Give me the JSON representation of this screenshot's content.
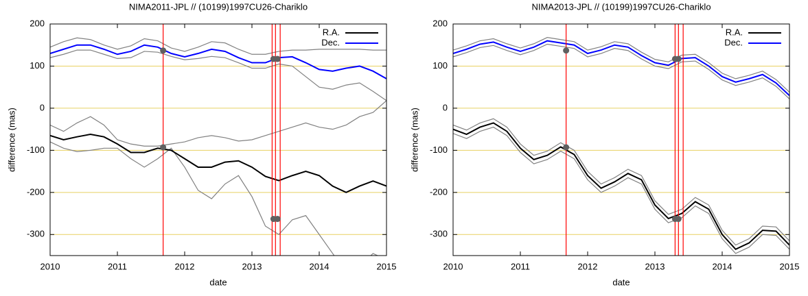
{
  "chart_data": [
    {
      "type": "line",
      "title": "NIMA2011-JPL // (10199)1997CU26-Chariklo",
      "xlabel": "date",
      "ylabel": "difference (mas)",
      "x": [
        2010.0,
        2010.2,
        2010.4,
        2010.6,
        2010.8,
        2011.0,
        2011.2,
        2011.4,
        2011.6,
        2011.8,
        2012.0,
        2012.2,
        2012.4,
        2012.6,
        2012.8,
        2013.0,
        2013.2,
        2013.4,
        2013.6,
        2013.8,
        2014.0,
        2014.2,
        2014.4,
        2014.6,
        2014.8,
        2015.0
      ],
      "series": [
        {
          "color": "#808080",
          "values": [
            145,
            158,
            167,
            163,
            150,
            140,
            148,
            165,
            160,
            143,
            135,
            145,
            158,
            155,
            140,
            128,
            128,
            135,
            138,
            138,
            140,
            140,
            140,
            140,
            138,
            138
          ]
        },
        {
          "color": "#808080",
          "values": [
            120,
            128,
            138,
            138,
            128,
            118,
            120,
            135,
            133,
            123,
            115,
            118,
            123,
            120,
            108,
            95,
            95,
            105,
            100,
            75,
            50,
            45,
            55,
            60,
            40,
            18
          ]
        },
        {
          "color": "#808080",
          "values": [
            -40,
            -55,
            -35,
            -20,
            -40,
            -75,
            -85,
            -90,
            -90,
            -85,
            -80,
            -70,
            -65,
            -70,
            -78,
            -75,
            -65,
            -55,
            -45,
            -35,
            -45,
            -50,
            -40,
            -20,
            -10,
            18
          ]
        },
        {
          "color": "#808080",
          "values": [
            -80,
            -95,
            -103,
            -100,
            -95,
            -95,
            -120,
            -140,
            -120,
            -95,
            -140,
            -195,
            -215,
            -180,
            -160,
            -210,
            -280,
            -300,
            -265,
            -255,
            -300,
            -345,
            -390,
            -375,
            -345,
            -360
          ]
        },
        {
          "name": "R.A.",
          "color": "#000000",
          "values": [
            -65,
            -75,
            -68,
            -62,
            -68,
            -85,
            -105,
            -105,
            -95,
            -100,
            -120,
            -140,
            -140,
            -128,
            -125,
            -140,
            -162,
            -172,
            -160,
            -150,
            -160,
            -185,
            -200,
            -185,
            -173,
            -185
          ]
        },
        {
          "name": "Dec.",
          "color": "#0000ff",
          "values": [
            130,
            140,
            150,
            150,
            140,
            128,
            135,
            150,
            145,
            130,
            122,
            130,
            140,
            135,
            120,
            108,
            108,
            120,
            122,
            108,
            92,
            88,
            95,
            100,
            88,
            70
          ]
        }
      ],
      "vlines": [
        2011.68,
        2013.3,
        2013.35,
        2013.42
      ],
      "vline_color": "#ff0000",
      "points": {
        "x": [
          2011.68,
          2011.68,
          2013.32,
          2013.38,
          2013.32,
          2013.38
        ],
        "y": [
          137,
          -93,
          117,
          117,
          -263,
          -263
        ],
        "color": "#606060"
      },
      "xlim": [
        2010,
        2015
      ],
      "ylim": [
        -350,
        200
      ],
      "xticks": [
        2010,
        2011,
        2012,
        2013,
        2014,
        2015
      ],
      "yticks": [
        -300,
        -200,
        -100,
        0,
        100,
        200
      ],
      "grid": "y",
      "grid_color": "#e8d060",
      "legend": "top-right"
    },
    {
      "type": "line",
      "title": "NIMA2013-JPL // (10199)1997CU26-Chariklo",
      "xlabel": "date",
      "ylabel": "difference (mas)",
      "x": [
        2010.0,
        2010.2,
        2010.4,
        2010.6,
        2010.8,
        2011.0,
        2011.2,
        2011.4,
        2011.6,
        2011.8,
        2012.0,
        2012.2,
        2012.4,
        2012.6,
        2012.8,
        2013.0,
        2013.2,
        2013.4,
        2013.6,
        2013.8,
        2014.0,
        2014.2,
        2014.4,
        2014.6,
        2014.8,
        2015.0
      ],
      "series": [
        {
          "color": "#808080",
          "values": [
            138,
            148,
            160,
            165,
            153,
            143,
            153,
            168,
            163,
            158,
            138,
            146,
            158,
            153,
            133,
            116,
            110,
            126,
            128,
            108,
            83,
            70,
            78,
            88,
            68,
            38
          ]
        },
        {
          "color": "#808080",
          "values": [
            122,
            132,
            144,
            149,
            137,
            127,
            137,
            152,
            147,
            142,
            122,
            130,
            142,
            137,
            117,
            100,
            94,
            110,
            112,
            92,
            67,
            54,
            62,
            72,
            52,
            22
          ]
        },
        {
          "color": "#808080",
          "values": [
            -40,
            -52,
            -35,
            -25,
            -45,
            -85,
            -112,
            -102,
            -82,
            -100,
            -150,
            -180,
            -165,
            -145,
            -160,
            -220,
            -252,
            -240,
            -212,
            -230,
            -290,
            -325,
            -310,
            -280,
            -282,
            -315
          ]
        },
        {
          "color": "#808080",
          "values": [
            -60,
            -72,
            -55,
            -45,
            -65,
            -105,
            -132,
            -122,
            -102,
            -120,
            -170,
            -200,
            -185,
            -165,
            -180,
            -240,
            -272,
            -260,
            -232,
            -250,
            -310,
            -345,
            -330,
            -300,
            -302,
            -335
          ]
        },
        {
          "name": "R.A.",
          "color": "#000000",
          "values": [
            -50,
            -62,
            -45,
            -35,
            -55,
            -95,
            -122,
            -112,
            -92,
            -110,
            -160,
            -190,
            -175,
            -155,
            -170,
            -230,
            -262,
            -250,
            -222,
            -240,
            -300,
            -335,
            -320,
            -290,
            -292,
            -325
          ]
        },
        {
          "name": "Dec.",
          "color": "#0000ff",
          "values": [
            130,
            140,
            152,
            157,
            145,
            135,
            145,
            160,
            155,
            150,
            130,
            138,
            150,
            145,
            125,
            108,
            102,
            118,
            120,
            100,
            75,
            62,
            70,
            80,
            60,
            30
          ]
        }
      ],
      "vlines": [
        2011.68,
        2013.3,
        2013.35,
        2013.42
      ],
      "vline_color": "#ff0000",
      "points": {
        "x": [
          2011.68,
          2011.68,
          2013.3,
          2013.35,
          2013.3,
          2013.35
        ],
        "y": [
          137,
          -93,
          117,
          117,
          -263,
          -263
        ],
        "color": "#606060"
      },
      "xlim": [
        2010,
        2015
      ],
      "ylim": [
        -350,
        200
      ],
      "xticks": [
        2010,
        2011,
        2012,
        2013,
        2014,
        2015
      ],
      "yticks": [
        -300,
        -200,
        -100,
        0,
        100,
        200
      ],
      "grid": "y",
      "grid_color": "#e8d060",
      "legend": "top-right"
    }
  ]
}
